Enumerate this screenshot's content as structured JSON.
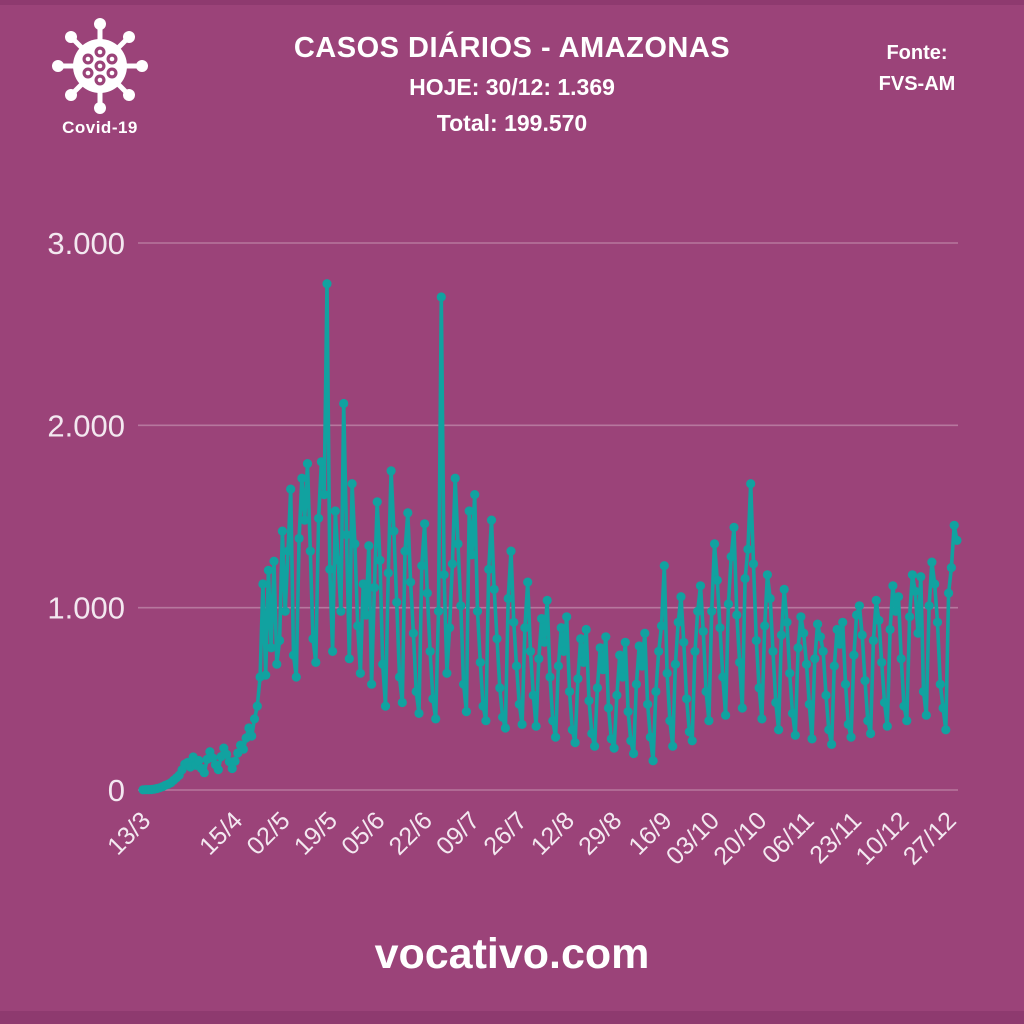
{
  "header": {
    "badge_label": "Covid-19",
    "title": "CASOS DIÁRIOS - AMAZONAS",
    "subtitle_today": "HOJE: 30/12: 1.369",
    "subtitle_total": "Total: 199.570",
    "source_label": "Fonte:",
    "source_value": "FVS-AM"
  },
  "footer": {
    "site": "vocativo.com"
  },
  "colors": {
    "background": "#9b4379",
    "bottom_band": "#8e3a6f",
    "line": "#11a2a0",
    "grid": "rgba(255,255,255,0.28)",
    "axis_text": "#f3e8f0"
  },
  "chart_data": {
    "type": "line",
    "title": "CASOS DIÁRIOS - AMAZONAS",
    "xlabel": "",
    "ylabel": "",
    "ylim": [
      0,
      3000
    ],
    "yticks": [
      0,
      1000,
      2000,
      3000
    ],
    "ytick_labels": [
      "0",
      "1.000",
      "2.000",
      "3.000"
    ],
    "xtick_labels": [
      "13/3",
      "15/4",
      "02/5",
      "19/5",
      "05/6",
      "22/6",
      "09/7",
      "26/7",
      "12/8",
      "29/8",
      "16/9",
      "03/10",
      "20/10",
      "06/11",
      "23/11",
      "10/12",
      "27/12"
    ],
    "xtick_indices": [
      0,
      33,
      50,
      67,
      84,
      101,
      118,
      135,
      152,
      169,
      187,
      204,
      221,
      238,
      255,
      272,
      289
    ],
    "grid": true,
    "legend": false,
    "marker": "circle",
    "series": [
      {
        "name": "casos diários",
        "values": [
          1,
          2,
          2,
          3,
          5,
          8,
          12,
          18,
          26,
          32,
          40,
          54,
          67,
          81,
          110,
          142,
          151,
          126,
          181,
          135,
          162,
          118,
          95,
          168,
          210,
          176,
          138,
          112,
          183,
          230,
          195,
          156,
          118,
          158,
          203,
          246,
          224,
          285,
          340,
          296,
          390,
          460,
          620,
          1130,
          630,
          1205,
          780,
          1255,
          690,
          820,
          1420,
          980,
          1310,
          1650,
          740,
          620,
          1380,
          1710,
          1480,
          1790,
          1310,
          830,
          700,
          1490,
          1800,
          1620,
          2777,
          1210,
          760,
          1530,
          1260,
          980,
          2120,
          1400,
          720,
          1680,
          1350,
          900,
          640,
          1130,
          960,
          1340,
          580,
          1110,
          1580,
          1260,
          690,
          460,
          1190,
          1750,
          1420,
          1030,
          620,
          480,
          1310,
          1520,
          1140,
          860,
          540,
          420,
          1230,
          1460,
          1080,
          760,
          500,
          390,
          980,
          2704,
          1180,
          640,
          890,
          1240,
          1710,
          1350,
          1010,
          580,
          430,
          1530,
          1290,
          1620,
          980,
          700,
          460,
          380,
          1210,
          1480,
          1100,
          830,
          560,
          400,
          340,
          1050,
          1310,
          920,
          680,
          470,
          360,
          890,
          1140,
          760,
          520,
          350,
          720,
          940,
          810,
          1040,
          620,
          380,
          290,
          680,
          890,
          760,
          950,
          540,
          330,
          260,
          610,
          830,
          700,
          880,
          490,
          310,
          240,
          560,
          780,
          660,
          840,
          450,
          280,
          230,
          520,
          740,
          620,
          810,
          430,
          270,
          200,
          580,
          790,
          680,
          860,
          470,
          290,
          160,
          540,
          760,
          900,
          1230,
          640,
          380,
          240,
          690,
          920,
          1060,
          810,
          500,
          320,
          270,
          760,
          980,
          1120,
          870,
          540,
          380,
          980,
          1350,
          1150,
          890,
          620,
          410,
          1020,
          1280,
          1440,
          960,
          700,
          450,
          1160,
          1320,
          1680,
          1240,
          820,
          560,
          390,
          900,
          1180,
          1050,
          760,
          480,
          330,
          850,
          1100,
          920,
          640,
          420,
          300,
          780,
          950,
          860,
          690,
          470,
          280,
          720,
          910,
          840,
          760,
          520,
          330,
          250,
          680,
          880,
          800,
          920,
          580,
          360,
          290,
          740,
          960,
          1010,
          850,
          600,
          380,
          310,
          820,
          1040,
          930,
          700,
          480,
          350,
          880,
          1120,
          980,
          1060,
          720,
          460,
          380,
          950,
          1180,
          1090,
          860,
          1170,
          540,
          410,
          1010,
          1250,
          1130,
          920,
          580,
          450,
          330,
          1080,
          1220,
          1452,
          1369
        ]
      }
    ]
  }
}
